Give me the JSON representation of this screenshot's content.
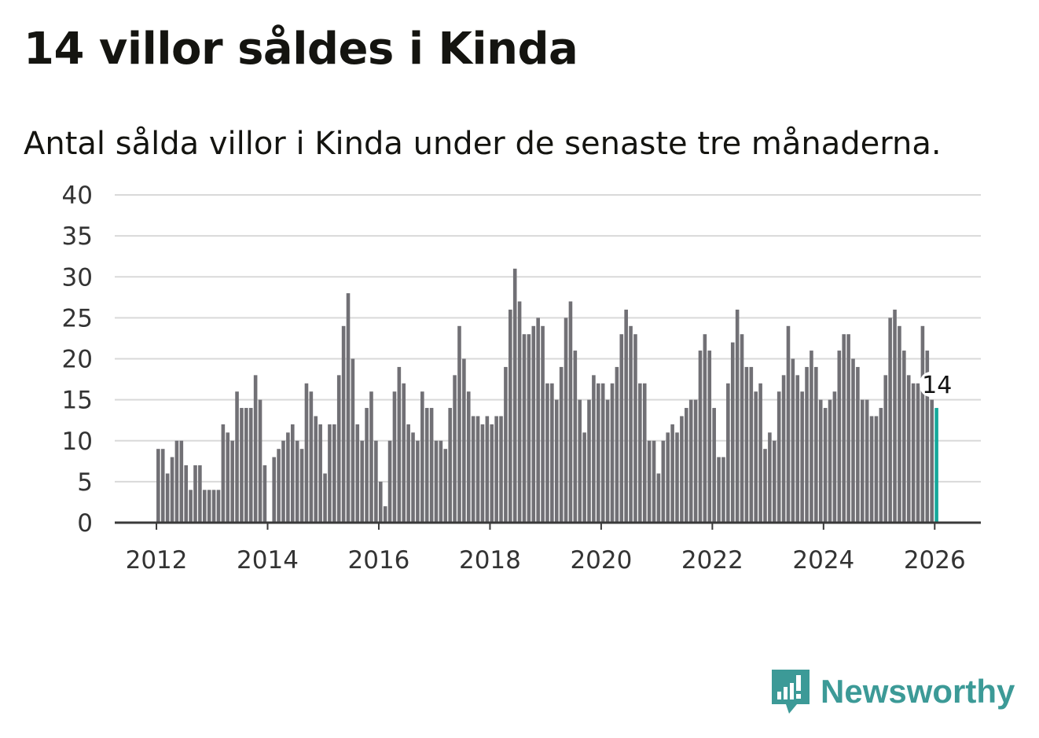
{
  "title": "14 villor såldes i Kinda",
  "subtitle": "Antal sålda villor i Kinda under de senaste tre månaderna.",
  "brand": {
    "name": "Newsworthy",
    "icon": "newsworthy-logo-icon",
    "color": "#3c9a97"
  },
  "colors": {
    "bar": "#717075",
    "highlight": "#14a89b",
    "grid": "#d9d9d9"
  },
  "chart_data": {
    "type": "bar",
    "title": "14 villor såldes i Kinda",
    "xlabel": "",
    "ylabel": "",
    "ylim": [
      0,
      40
    ],
    "yticks": [
      0,
      5,
      10,
      15,
      20,
      25,
      30,
      35,
      40
    ],
    "xlim": [
      2011.25,
      2026.83
    ],
    "xticks": [
      2012,
      2014,
      2016,
      2018,
      2020,
      2022,
      2024,
      2026
    ],
    "start": "2012-01",
    "interval": "month",
    "values": [
      9,
      9,
      6,
      8,
      10,
      10,
      7,
      4,
      7,
      7,
      4,
      4,
      4,
      4,
      12,
      11,
      10,
      16,
      14,
      14,
      14,
      18,
      15,
      7,
      0,
      8,
      9,
      10,
      11,
      12,
      10,
      9,
      17,
      16,
      13,
      12,
      6,
      12,
      12,
      18,
      24,
      28,
      20,
      12,
      10,
      14,
      16,
      10,
      5,
      2,
      10,
      16,
      19,
      17,
      12,
      11,
      10,
      16,
      14,
      14,
      10,
      10,
      9,
      14,
      18,
      24,
      20,
      16,
      13,
      13,
      12,
      13,
      12,
      13,
      13,
      19,
      26,
      31,
      27,
      23,
      23,
      24,
      25,
      24,
      17,
      17,
      15,
      19,
      25,
      27,
      21,
      15,
      11,
      15,
      18,
      17,
      17,
      15,
      17,
      19,
      23,
      26,
      24,
      23,
      17,
      17,
      10,
      10,
      6,
      10,
      11,
      12,
      11,
      13,
      14,
      15,
      15,
      21,
      23,
      21,
      14,
      8,
      8,
      17,
      22,
      26,
      23,
      19,
      19,
      16,
      17,
      9,
      11,
      10,
      16,
      18,
      24,
      20,
      18,
      16,
      19,
      21,
      19,
      15,
      14,
      15,
      16,
      21,
      23,
      23,
      20,
      19,
      15,
      15,
      13,
      13,
      14,
      18,
      25,
      26,
      24,
      21,
      18,
      17,
      17,
      24,
      21,
      15,
      14
    ],
    "highlight_last": true,
    "annotation": {
      "label": "14",
      "value": 14
    }
  }
}
